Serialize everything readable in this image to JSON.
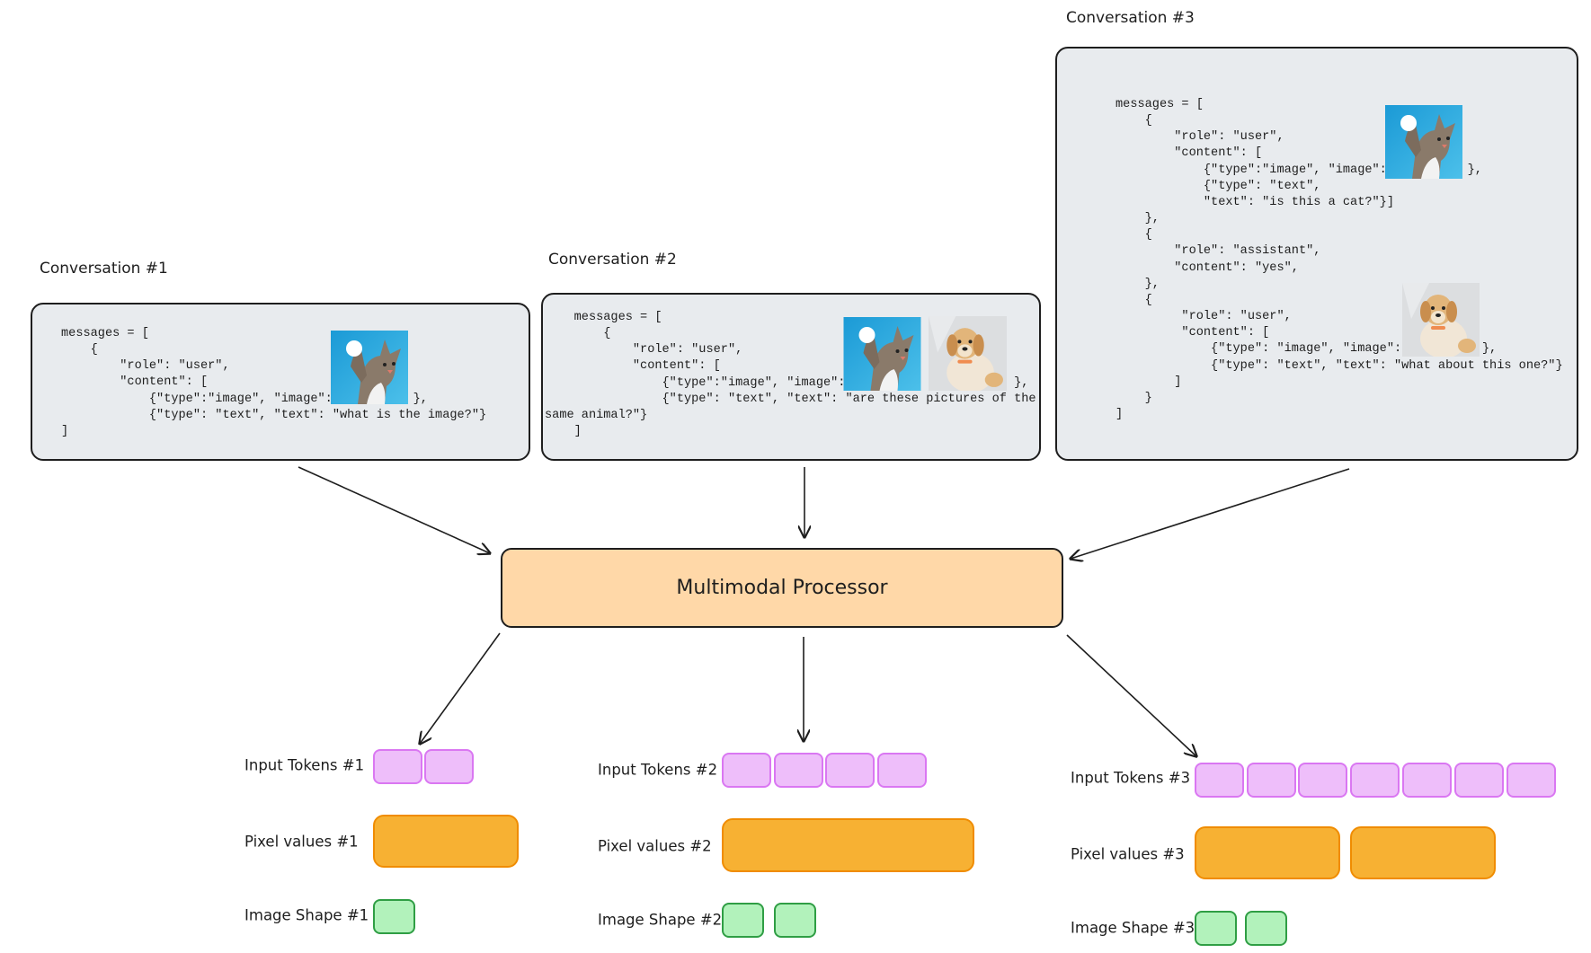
{
  "conversations": [
    {
      "label": "Conversation #1",
      "code": "messages = [\n    {\n        \"role\": \"user\",\n        \"content\": [\n            {\"type\":\"image\", \"image\":           },\n            {\"type\": \"text\", \"text\": \"what is the image?\"}\n]",
      "images": [
        "cat"
      ]
    },
    {
      "label": "Conversation #2",
      "code": "    messages = [\n        {\n            \"role\": \"user\",\n            \"content\": [\n                {\"type\":\"image\", \"image\":                       },\n                {\"type\": \"text\", \"text\": \"are these pictures of the\nsame animal?\"}\n    ]",
      "images": [
        "cat",
        "dog"
      ]
    },
    {
      "label": "Conversation #3",
      "code": "messages = [\n    {\n        \"role\": \"user\",\n        \"content\": [\n            {\"type\":\"image\", \"image\":           },\n            {\"type\": \"text\",\n            \"text\": \"is this a cat?\"}]\n    },\n    {\n        \"role\": \"assistant\",\n        \"content\": \"yes\",\n    },\n    {\n         \"role\": \"user\",\n         \"content\": [\n             {\"type\": \"image\", \"image\":           },\n             {\"type\": \"text\", \"text\": \"what about this one?\"}\n        ]\n    }\n]",
      "images": [
        "cat",
        "dog"
      ]
    }
  ],
  "processor": {
    "label": "Multimodal Processor"
  },
  "outputs": [
    {
      "input_tokens_label": "Input Tokens #1",
      "pixel_values_label": "Pixel values #1",
      "image_shape_label": "Image Shape #1",
      "token_count": 2,
      "pixel_blocks": 1,
      "shape_blocks": 1
    },
    {
      "input_tokens_label": "Input Tokens #2",
      "pixel_values_label": "Pixel values #2",
      "image_shape_label": "Image Shape #2",
      "token_count": 4,
      "pixel_blocks": 1,
      "shape_blocks": 2
    },
    {
      "input_tokens_label": "Input Tokens #3",
      "pixel_values_label": "Pixel values #3",
      "image_shape_label": "Image Shape #3",
      "token_count": 7,
      "pixel_blocks": 2,
      "shape_blocks": 2
    }
  ],
  "colors": {
    "conversation_box": "#e8ebee",
    "processor": "#ffd8a8",
    "input_token": "#eebefa",
    "pixel_values": "#f7b133",
    "image_shape": "#b2f2bb"
  }
}
